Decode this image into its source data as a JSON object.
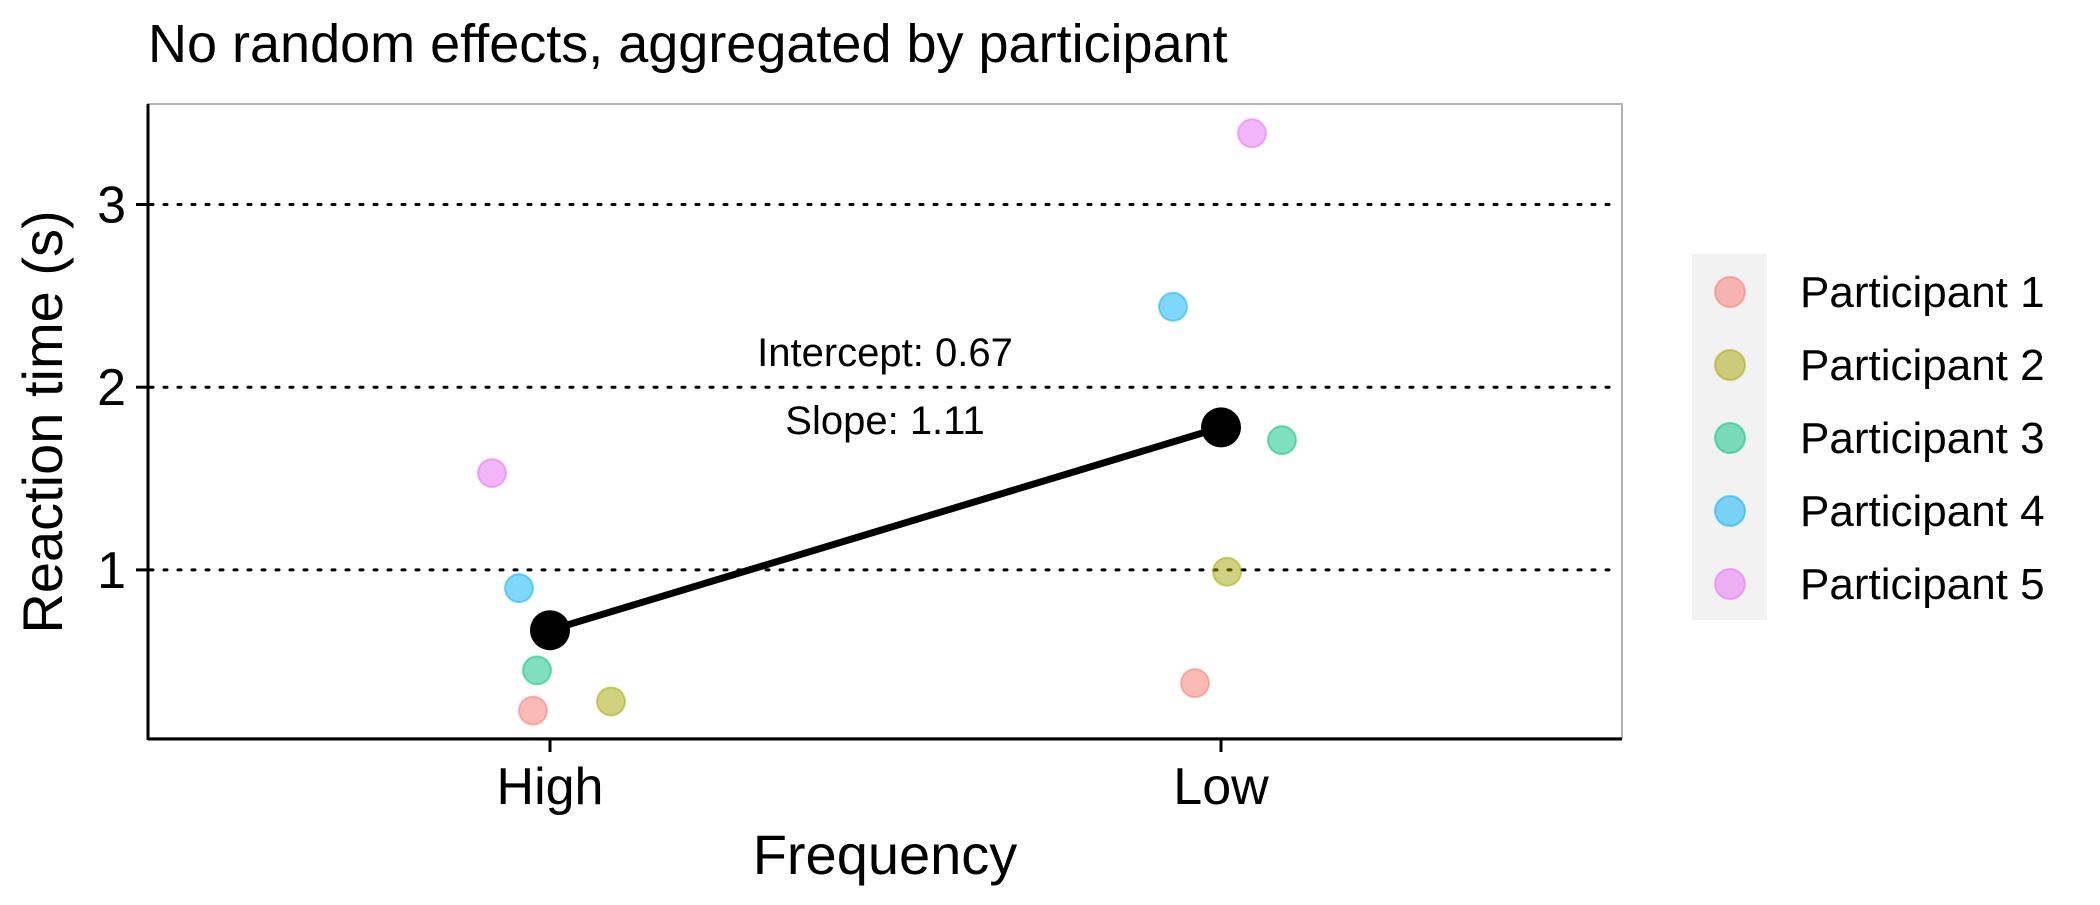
{
  "chart_data": {
    "type": "scatter",
    "title": "No random effects, aggregated by participant",
    "xlabel": "Frequency",
    "ylabel": "Reaction time (s)",
    "categories": [
      "High",
      "Low"
    ],
    "ylim": [
      0.08,
      3.55
    ],
    "yticks": [
      1,
      2,
      3
    ],
    "grid": "horizontal dotted",
    "legend_position": "right",
    "series": [
      {
        "name": "Participant 1",
        "color": "#F8766D",
        "points": [
          {
            "x": "High",
            "y": 0.23
          },
          {
            "x": "Low",
            "y": 0.38
          }
        ]
      },
      {
        "name": "Participant 2",
        "color": "#A3A500",
        "points": [
          {
            "x": "High",
            "y": 0.28
          },
          {
            "x": "Low",
            "y": 0.99
          }
        ]
      },
      {
        "name": "Participant 3",
        "color": "#00BF7D",
        "points": [
          {
            "x": "High",
            "y": 0.45
          },
          {
            "x": "Low",
            "y": 1.71
          }
        ]
      },
      {
        "name": "Participant 4",
        "color": "#00B0F6",
        "points": [
          {
            "x": "High",
            "y": 0.9
          },
          {
            "x": "Low",
            "y": 2.44
          }
        ]
      },
      {
        "name": "Participant 5",
        "color": "#E76BF3",
        "points": [
          {
            "x": "High",
            "y": 1.53
          },
          {
            "x": "Low",
            "y": 3.39
          }
        ]
      }
    ],
    "means": {
      "color": "#000000",
      "points": [
        {
          "x": "High",
          "y": 0.67
        },
        {
          "x": "Low",
          "y": 1.78
        }
      ]
    },
    "annotations": [
      "Intercept: 0.67",
      "Slope: 1.11"
    ]
  }
}
